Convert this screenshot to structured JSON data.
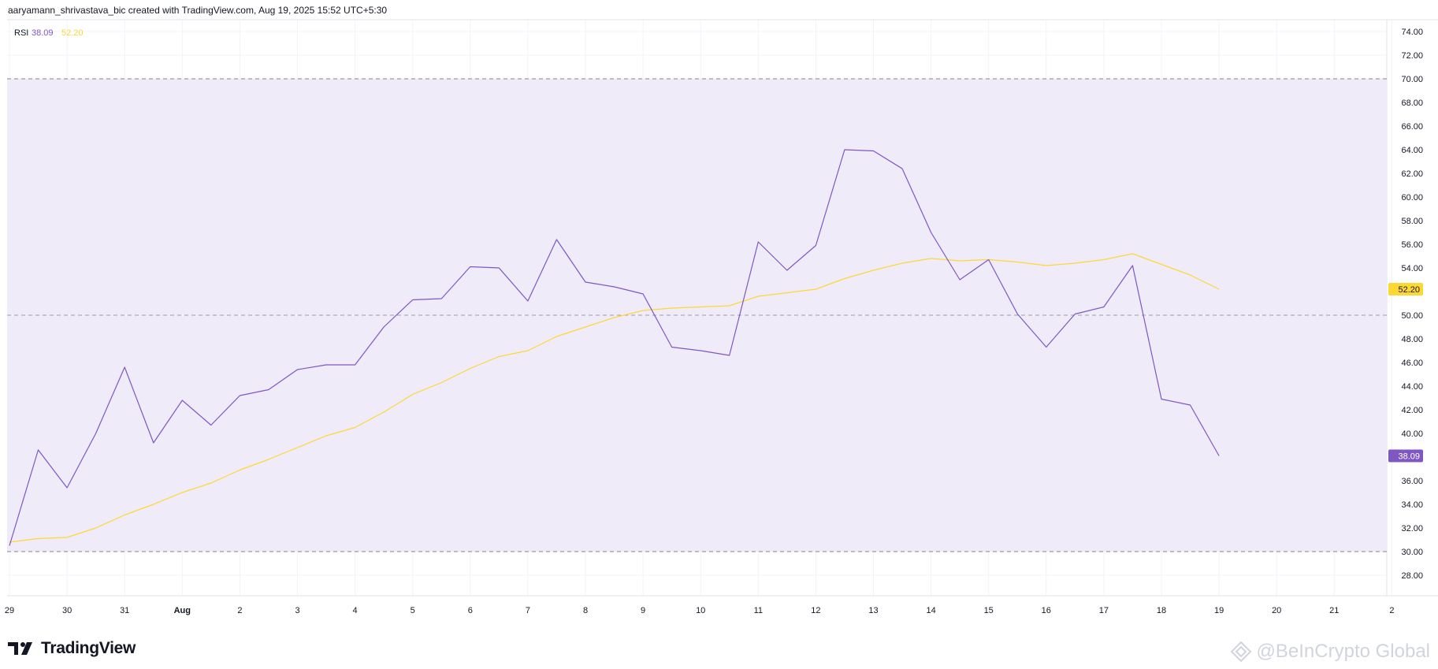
{
  "header": {
    "text": "aaryamann_shrivastava_bic created with TradingView.com, Aug 19, 2025 15:52 UTC+5:30"
  },
  "brand": {
    "name": "TradingView",
    "watermark": "@BeInCrypto Global"
  },
  "colors": {
    "rsi": "#7e57c2",
    "ma": "#fdd835",
    "band_fill": "#efebf8",
    "grid": "#f0f3fa",
    "dashed": "#787b86",
    "axis_text": "#131722"
  },
  "chart_data": {
    "type": "line",
    "legend": {
      "indicator": "RSI",
      "rsi_value": "38.09",
      "ma_value": "52.20"
    },
    "ylim": [
      26.5,
      75.5
    ],
    "yticks": [
      28,
      30,
      32,
      34,
      36,
      38,
      40,
      42,
      44,
      46,
      48,
      50,
      52,
      54,
      56,
      58,
      60,
      62,
      64,
      66,
      68,
      70,
      72,
      74
    ],
    "ytick_labels": [
      "28.00",
      "30.00",
      "32.00",
      "34.00",
      "36.00",
      "38.00",
      "40.00",
      "42.00",
      "44.00",
      "46.00",
      "48.00",
      "50.00",
      "52.00",
      "54.00",
      "56.00",
      "58.00",
      "60.00",
      "62.00",
      "64.00",
      "66.00",
      "68.00",
      "70.00",
      "72.00",
      "74.00"
    ],
    "bands": {
      "upper": 70,
      "middle": 50,
      "lower": 30
    },
    "x_labels": [
      {
        "t": 0,
        "label": "29"
      },
      {
        "t": 2,
        "label": "30"
      },
      {
        "t": 4,
        "label": "31"
      },
      {
        "t": 6,
        "label": "Aug"
      },
      {
        "t": 8,
        "label": "2"
      },
      {
        "t": 10,
        "label": "3"
      },
      {
        "t": 12,
        "label": "4"
      },
      {
        "t": 14,
        "label": "5"
      },
      {
        "t": 16,
        "label": "6"
      },
      {
        "t": 18,
        "label": "7"
      },
      {
        "t": 20,
        "label": "8"
      },
      {
        "t": 22,
        "label": "9"
      },
      {
        "t": 24,
        "label": "10"
      },
      {
        "t": 26,
        "label": "11"
      },
      {
        "t": 28,
        "label": "12"
      },
      {
        "t": 30,
        "label": "13"
      },
      {
        "t": 32,
        "label": "14"
      },
      {
        "t": 34,
        "label": "15"
      },
      {
        "t": 36,
        "label": "16"
      },
      {
        "t": 38,
        "label": "17"
      },
      {
        "t": 40,
        "label": "18"
      },
      {
        "t": 42,
        "label": "19"
      },
      {
        "t": 44,
        "label": "20"
      },
      {
        "t": 46,
        "label": "21"
      },
      {
        "t": 48,
        "label": "2"
      }
    ],
    "series": [
      {
        "name": "RSI",
        "color": "#7e57c2",
        "values": [
          30.5,
          38.6,
          35.4,
          40.0,
          45.6,
          39.2,
          42.8,
          40.7,
          43.2,
          43.7,
          45.4,
          45.8,
          45.8,
          49.0,
          51.3,
          51.4,
          54.1,
          54.0,
          51.2,
          56.4,
          52.8,
          52.4,
          51.8,
          47.3,
          47.0,
          46.6,
          56.2,
          53.8,
          55.9,
          64.0,
          63.9,
          62.4,
          57.0,
          53.0,
          54.7,
          50.1,
          47.3,
          50.1,
          50.7,
          54.2,
          42.9,
          42.4,
          38.1
        ],
        "last_label": "38.09"
      },
      {
        "name": "RSI-based MA",
        "color": "#fdd835",
        "values": [
          30.8,
          31.1,
          31.2,
          32.0,
          33.1,
          34.0,
          35.0,
          35.8,
          36.9,
          37.8,
          38.8,
          39.8,
          40.5,
          41.8,
          43.3,
          44.3,
          45.5,
          46.5,
          47.0,
          48.2,
          49.0,
          49.8,
          50.4,
          50.6,
          50.7,
          50.8,
          51.6,
          51.9,
          52.2,
          53.1,
          53.8,
          54.4,
          54.8,
          54.6,
          54.7,
          54.5,
          54.2,
          54.4,
          54.7,
          55.2,
          54.3,
          53.4,
          52.2
        ],
        "last_label": "52.20"
      }
    ]
  }
}
